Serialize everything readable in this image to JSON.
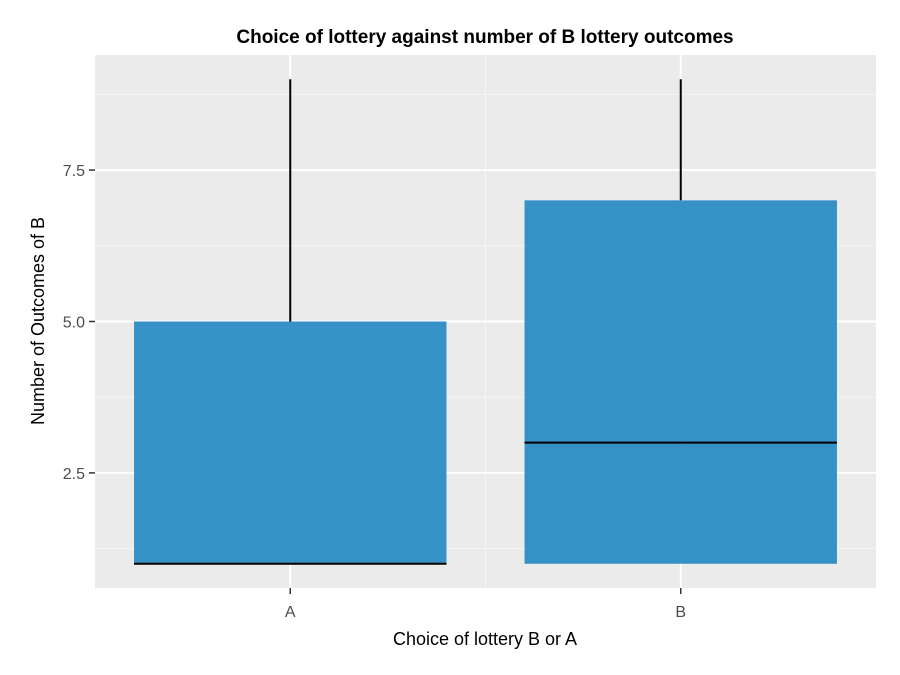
{
  "chart_data": {
    "type": "boxplot",
    "title": "Choice of lottery against number of B lottery outcomes",
    "xlabel": "Choice of lottery B or A",
    "ylabel": "Number of Outcomes of B",
    "categories": [
      "A",
      "B"
    ],
    "boxes": [
      {
        "category": "A",
        "lower_whisker": 1,
        "q1": 1,
        "median": 1,
        "q3": 5,
        "upper_whisker": 9
      },
      {
        "category": "B",
        "lower_whisker": 1,
        "q1": 1,
        "median": 3,
        "q3": 7,
        "upper_whisker": 9
      }
    ],
    "yticks": [
      2.5,
      5.0,
      7.5
    ],
    "ytick_labels": [
      "2.5",
      "5.0",
      "7.5"
    ],
    "ylim": [
      0.6,
      9.4
    ],
    "grid": true,
    "legend": "none",
    "colors": {
      "panel_background": "#ebebeb",
      "grid_major": "#ffffff",
      "grid_minor": "#f5f5f5",
      "box_fill": "#2b8cc4",
      "line": "#000000",
      "tick_text": "#4d4d4d"
    }
  }
}
